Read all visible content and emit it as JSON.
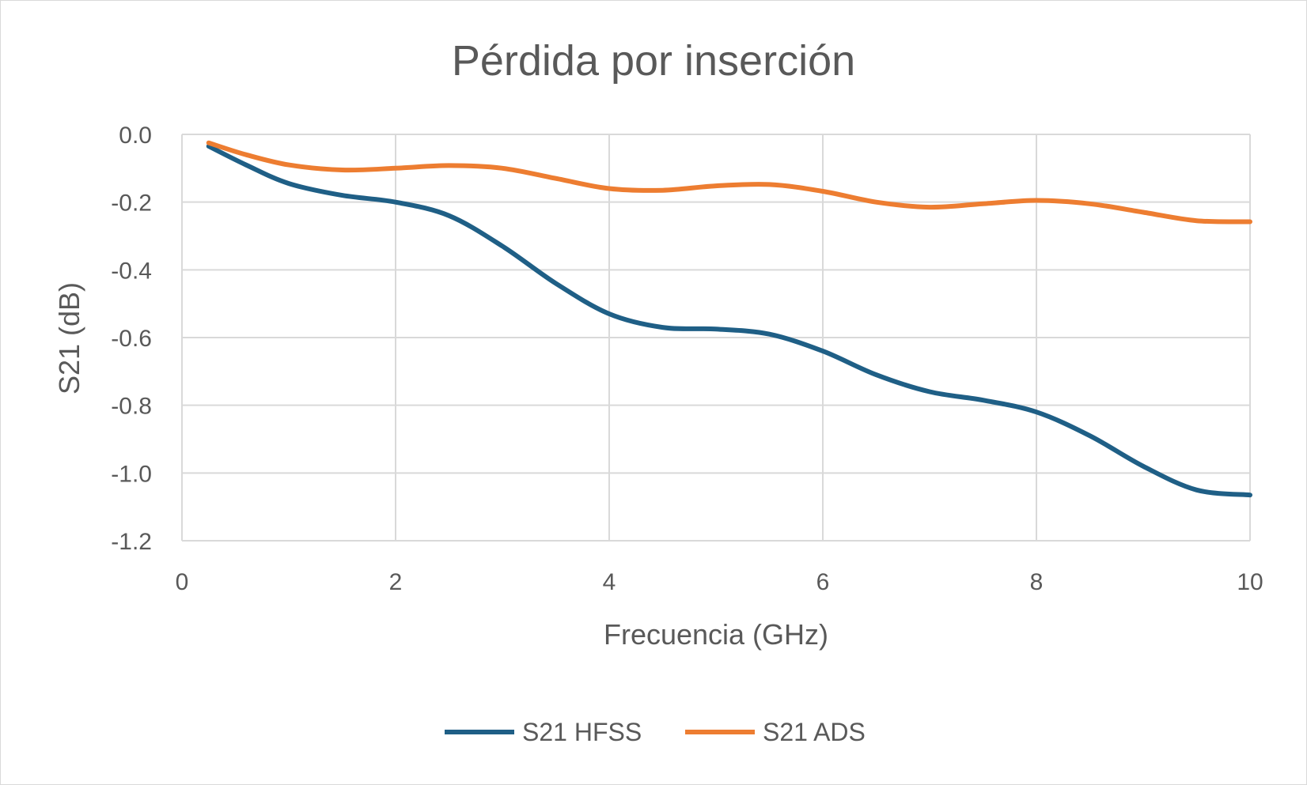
{
  "chart_data": {
    "type": "line",
    "title": "Pérdida por inserción",
    "xlabel": "Frecuencia (GHz)",
    "ylabel": "S21 (dB)",
    "xlim": [
      0,
      10
    ],
    "ylim": [
      -1.2,
      0.0
    ],
    "x_ticks": [
      0,
      2,
      4,
      6,
      8,
      10
    ],
    "x_tick_labels": [
      "0",
      "2",
      "4",
      "6",
      "8",
      "10"
    ],
    "y_ticks": [
      0.0,
      -0.2,
      -0.4,
      -0.6,
      -0.8,
      -1.0,
      -1.2
    ],
    "y_tick_labels": [
      "0.0",
      "-0.2",
      "-0.4",
      "-0.6",
      "-0.8",
      "-1.0",
      "-1.2"
    ],
    "grid": true,
    "legend_position": "bottom",
    "series": [
      {
        "name": "S21 HFSS",
        "color": "#1f5f86",
        "x": [
          0.25,
          0.6,
          1.0,
          1.5,
          2.0,
          2.5,
          3.0,
          3.5,
          4.0,
          4.5,
          5.0,
          5.5,
          6.0,
          6.5,
          7.0,
          7.5,
          8.0,
          8.5,
          9.0,
          9.5,
          10.0
        ],
        "y": [
          -0.035,
          -0.09,
          -0.145,
          -0.18,
          -0.2,
          -0.24,
          -0.33,
          -0.44,
          -0.53,
          -0.57,
          -0.575,
          -0.59,
          -0.64,
          -0.71,
          -0.76,
          -0.785,
          -0.82,
          -0.89,
          -0.98,
          -1.05,
          -1.065
        ]
      },
      {
        "name": "S21 ADS",
        "color": "#ed7d31",
        "x": [
          0.25,
          0.6,
          1.0,
          1.5,
          2.0,
          2.5,
          3.0,
          3.5,
          4.0,
          4.5,
          5.0,
          5.5,
          6.0,
          6.5,
          7.0,
          7.5,
          8.0,
          8.5,
          9.0,
          9.5,
          10.0
        ],
        "y": [
          -0.025,
          -0.06,
          -0.09,
          -0.105,
          -0.1,
          -0.092,
          -0.1,
          -0.13,
          -0.16,
          -0.165,
          -0.152,
          -0.148,
          -0.168,
          -0.2,
          -0.215,
          -0.205,
          -0.195,
          -0.205,
          -0.23,
          -0.255,
          -0.258
        ]
      }
    ]
  }
}
